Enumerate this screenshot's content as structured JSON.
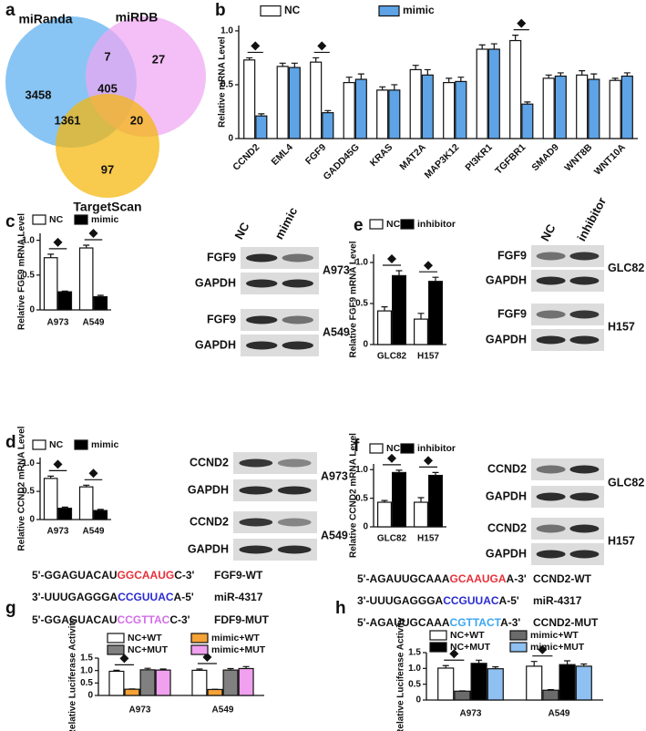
{
  "chart_data": [
    {
      "type": "venn",
      "panel": "a",
      "sets": [
        {
          "name": "miRanda",
          "color": "#5aaef0"
        },
        {
          "name": "miRDB",
          "color": "#eea6f2"
        },
        {
          "name": "TargetScan",
          "color": "#f5b508"
        }
      ],
      "regions": [
        {
          "sets": [
            "miRanda"
          ],
          "value": 3458
        },
        {
          "sets": [
            "miRanda",
            "miRDB"
          ],
          "value": 7
        },
        {
          "sets": [
            "miRDB"
          ],
          "value": 27
        },
        {
          "sets": [
            "miRanda",
            "miRDB",
            "TargetScan"
          ],
          "value": 405
        },
        {
          "sets": [
            "miRanda",
            "TargetScan"
          ],
          "value": 1361
        },
        {
          "sets": [
            "miRDB",
            "TargetScan"
          ],
          "value": 20
        },
        {
          "sets": [
            "TargetScan"
          ],
          "value": 97
        }
      ]
    },
    {
      "type": "bar",
      "panel": "b",
      "ylabel": "Relative mRNA Level",
      "categories": [
        "CCND2",
        "EML4",
        "FGF9",
        "GADD45G",
        "KRAS",
        "MAT2A",
        "MAP3K12",
        "PI3KR1",
        "TGFBR1",
        "SMAD9",
        "WNT8B",
        "WNT10A"
      ],
      "series": [
        {
          "name": "NC",
          "color": "#ffffff",
          "values": [
            0.73,
            0.67,
            0.71,
            0.52,
            0.45,
            0.64,
            0.52,
            0.83,
            0.91,
            0.56,
            0.59,
            0.54
          ],
          "errors": [
            0.02,
            0.03,
            0.04,
            0.05,
            0.03,
            0.04,
            0.04,
            0.04,
            0.05,
            0.03,
            0.04,
            0.02
          ]
        },
        {
          "name": "mimic",
          "color": "#5ea3e6",
          "values": [
            0.21,
            0.66,
            0.24,
            0.55,
            0.45,
            0.59,
            0.53,
            0.83,
            0.32,
            0.58,
            0.55,
            0.58
          ],
          "errors": [
            0.02,
            0.04,
            0.02,
            0.05,
            0.05,
            0.05,
            0.04,
            0.05,
            0.02,
            0.03,
            0.05,
            0.03
          ]
        }
      ],
      "ylim": [
        0,
        1.05
      ],
      "yticks": [
        0,
        0.5,
        {
          "value": 1,
          "label": "1.0"
        }
      ],
      "significant": [
        "CCND2",
        "FGF9",
        "TGFBR1"
      ]
    },
    {
      "type": "bar",
      "panel": "c",
      "ylabel": "Relative FGF9 mRNA Level",
      "categories": [
        "A973",
        "A549"
      ],
      "series": [
        {
          "name": "NC",
          "color": "#ffffff",
          "values": [
            0.75,
            0.89
          ],
          "errors": [
            0.05,
            0.04
          ]
        },
        {
          "name": "mimic",
          "color": "#000000",
          "values": [
            0.26,
            0.19
          ],
          "errors": [
            0.01,
            0.02
          ]
        }
      ],
      "ylim": [
        0,
        1.1
      ],
      "yticks": [
        0,
        0.5,
        {
          "value": 1,
          "label": "1.0"
        }
      ],
      "significant": [
        "A973",
        "A549"
      ]
    },
    {
      "type": "bar",
      "panel": "e",
      "ylabel": "Relative FGF9 mRNA Level",
      "categories": [
        "GLC82",
        "H157"
      ],
      "series": [
        {
          "name": "NC",
          "color": "#ffffff",
          "values": [
            0.41,
            0.31
          ],
          "errors": [
            0.05,
            0.07
          ]
        },
        {
          "name": "inhibitor",
          "color": "#000000",
          "values": [
            0.84,
            0.77
          ],
          "errors": [
            0.06,
            0.05
          ]
        }
      ],
      "ylim": [
        0,
        1.1
      ],
      "yticks": [
        0,
        0.5,
        {
          "value": 1,
          "label": "1.0"
        }
      ],
      "significant": [
        "GLC82",
        "H157"
      ]
    },
    {
      "type": "bar",
      "panel": "d",
      "ylabel": "Relative CCND2 mRNA Level",
      "categories": [
        "A973",
        "A549"
      ],
      "series": [
        {
          "name": "NC",
          "color": "#ffffff",
          "values": [
            0.73,
            0.58
          ],
          "errors": [
            0.04,
            0.03
          ]
        },
        {
          "name": "mimic",
          "color": "#000000",
          "values": [
            0.2,
            0.16
          ],
          "errors": [
            0.02,
            0.02
          ]
        }
      ],
      "ylim": [
        0,
        1.1
      ],
      "yticks": [
        0,
        0.5,
        {
          "value": 1,
          "label": "1.0"
        }
      ],
      "significant": [
        "A973",
        "A549"
      ]
    },
    {
      "type": "bar",
      "panel": "f",
      "ylabel": "Relative CCND2 mRNA Level",
      "categories": [
        "GLC82",
        "H157"
      ],
      "series": [
        {
          "name": "NC",
          "color": "#ffffff",
          "values": [
            0.43,
            0.43
          ],
          "errors": [
            0.03,
            0.08
          ]
        },
        {
          "name": "inhibitor",
          "color": "#000000",
          "values": [
            0.95,
            0.9
          ],
          "errors": [
            0.04,
            0.05
          ]
        }
      ],
      "ylim": [
        0,
        1.1
      ],
      "yticks": [
        0,
        0.5,
        {
          "value": 1,
          "label": "1.0"
        }
      ],
      "significant": [
        "GLC82",
        "H157"
      ]
    },
    {
      "type": "bar",
      "panel": "g",
      "ylabel": "Relative Luciferase Activity",
      "categories": [
        "A973",
        "A549"
      ],
      "series": [
        {
          "name": "NC+WT",
          "color": "#ffffff",
          "values": [
            0.97,
            1.01
          ],
          "errors": [
            0.04,
            0.05
          ]
        },
        {
          "name": "mimic+WT",
          "color": "#f5a236",
          "values": [
            0.25,
            0.24
          ],
          "errors": [
            0.01,
            0.01
          ]
        },
        {
          "name": "NC+MUT",
          "color": "#808080",
          "values": [
            1.03,
            1.02
          ],
          "errors": [
            0.06,
            0.06
          ]
        },
        {
          "name": "mimic+MUT",
          "color": "#f0a0ee",
          "values": [
            1.02,
            1.08
          ],
          "errors": [
            0.04,
            0.08
          ]
        }
      ],
      "ylim": [
        0,
        1.5
      ],
      "yticks": [
        0,
        0.5,
        {
          "value": 1,
          "label": "1.0"
        },
        1.5
      ],
      "significant": [
        "A973",
        "A549"
      ]
    },
    {
      "type": "bar",
      "panel": "h",
      "ylabel": "Relative Luciferase Activity",
      "categories": [
        "A973",
        "A549"
      ],
      "series": [
        {
          "name": "NC+WT",
          "color": "#ffffff",
          "values": [
            1.01,
            1.07
          ],
          "errors": [
            0.08,
            0.15
          ]
        },
        {
          "name": "mimic+WT",
          "color": "#6b6b6b",
          "values": [
            0.28,
            0.31
          ],
          "errors": [
            0.01,
            0.02
          ]
        },
        {
          "name": "NC+MUT",
          "color": "#000000",
          "values": [
            1.16,
            1.12
          ],
          "errors": [
            0.1,
            0.12
          ]
        },
        {
          "name": "mimic+MUT",
          "color": "#8ec0f2",
          "values": [
            0.99,
            1.07
          ],
          "errors": [
            0.06,
            0.07
          ]
        }
      ],
      "ylim": [
        0,
        1.5
      ],
      "yticks": [
        0,
        0.5,
        {
          "value": 1,
          "label": "1.0"
        },
        1.5
      ],
      "significant": [
        "A973",
        "A549"
      ]
    }
  ],
  "blots": [
    {
      "headers": [
        "NC",
        "mimic"
      ],
      "groups": [
        {
          "cell_line": "A973",
          "rows": [
            "FGF9",
            "GAPDH"
          ]
        },
        {
          "cell_line": "A549",
          "rows": [
            "FGF9",
            "GAPDH"
          ]
        }
      ]
    },
    {
      "headers": [
        "NC",
        "inhibitor"
      ],
      "groups": [
        {
          "cell_line": "GLC82",
          "rows": [
            "FGF9",
            "GAPDH"
          ]
        },
        {
          "cell_line": "H157",
          "rows": [
            "FGF9",
            "GAPDH"
          ]
        }
      ]
    },
    {
      "groups": [
        {
          "cell_line": "A973",
          "rows": [
            "CCND2",
            "GAPDH"
          ]
        },
        {
          "cell_line": "A549",
          "rows": [
            "CCND2",
            "GAPDH"
          ]
        }
      ]
    },
    {
      "groups": [
        {
          "cell_line": "GLC82",
          "rows": [
            "CCND2",
            "GAPDH"
          ]
        },
        {
          "cell_line": "H157",
          "rows": [
            "CCND2",
            "GAPDH"
          ]
        }
      ]
    }
  ],
  "sequence_sets": [
    [
      {
        "segments": [
          {
            "text": "5'-GGAGUACAU",
            "color": "#111111"
          },
          {
            "text": "GGCAAUG",
            "color": "#e8303a"
          },
          {
            "text": "C-3'",
            "color": "#111111"
          }
        ],
        "label": "FGF9-WT"
      },
      {
        "segments": [
          {
            "text": "3'-UUUGAGGGA",
            "color": "#111111"
          },
          {
            "text": "CCGUUAC",
            "color": "#2b2bd0"
          },
          {
            "text": "A-5'",
            "color": "#111111"
          }
        ],
        "label": "miR-4317"
      },
      {
        "segments": [
          {
            "text": "5'-GGAGUACAU",
            "color": "#111111"
          },
          {
            "text": "CCGTTAC",
            "color": "#d36ee8"
          },
          {
            "text": "C-3'",
            "color": "#111111"
          }
        ],
        "label": "FDF9-MUT"
      }
    ],
    [
      {
        "segments": [
          {
            "text": "5'-AGAUUGCAAA",
            "color": "#111111"
          },
          {
            "text": "GCAAUGA",
            "color": "#e8303a"
          },
          {
            "text": "A-3'",
            "color": "#111111"
          }
        ],
        "label": "CCND2-WT"
      },
      {
        "segments": [
          {
            "text": "3'-UUUGAGGGA",
            "color": "#111111"
          },
          {
            "text": "CCGUUAC",
            "color": "#2b2bd0"
          },
          {
            "text": "A-5'",
            "color": "#111111"
          }
        ],
        "label": "miR-4317"
      },
      {
        "segments": [
          {
            "text": "5'-AGAUUGCAAA",
            "color": "#111111"
          },
          {
            "text": "CGTTACT",
            "color": "#3aa6f0"
          },
          {
            "text": "A-3'",
            "color": "#111111"
          }
        ],
        "label": "CCND2-MUT"
      }
    ]
  ]
}
